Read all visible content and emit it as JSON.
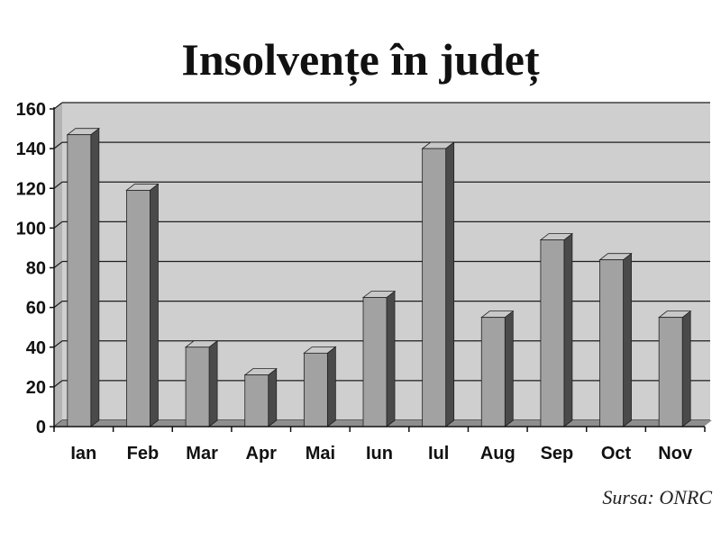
{
  "chart_data": {
    "type": "bar",
    "title": "Insolvențe în județ",
    "categories": [
      "Ian",
      "Feb",
      "Mar",
      "Apr",
      "Mai",
      "Iun",
      "Iul",
      "Aug",
      "Sep",
      "Oct",
      "Nov"
    ],
    "values": [
      147,
      119,
      40,
      26,
      37,
      65,
      140,
      55,
      94,
      84,
      55
    ],
    "xlabel": "",
    "ylabel": "",
    "ylim": [
      0,
      160
    ],
    "yticks": [
      0,
      20,
      40,
      60,
      80,
      100,
      120,
      140,
      160
    ],
    "ytick_labels": [
      "0",
      "20",
      "40",
      "60",
      "80",
      "100",
      "120",
      "140",
      "160"
    ],
    "grid": true,
    "legend": "none",
    "style": "3d",
    "colors": {
      "bar_front": "#a2a2a2",
      "bar_side": "#4a4a4a",
      "bar_top": "#c8c8c8",
      "plot_background": "#cfcfcf",
      "gridline": "#1e1e1e",
      "floor": "#8e8e8e"
    }
  },
  "source_note": "Sursa: ONRC"
}
